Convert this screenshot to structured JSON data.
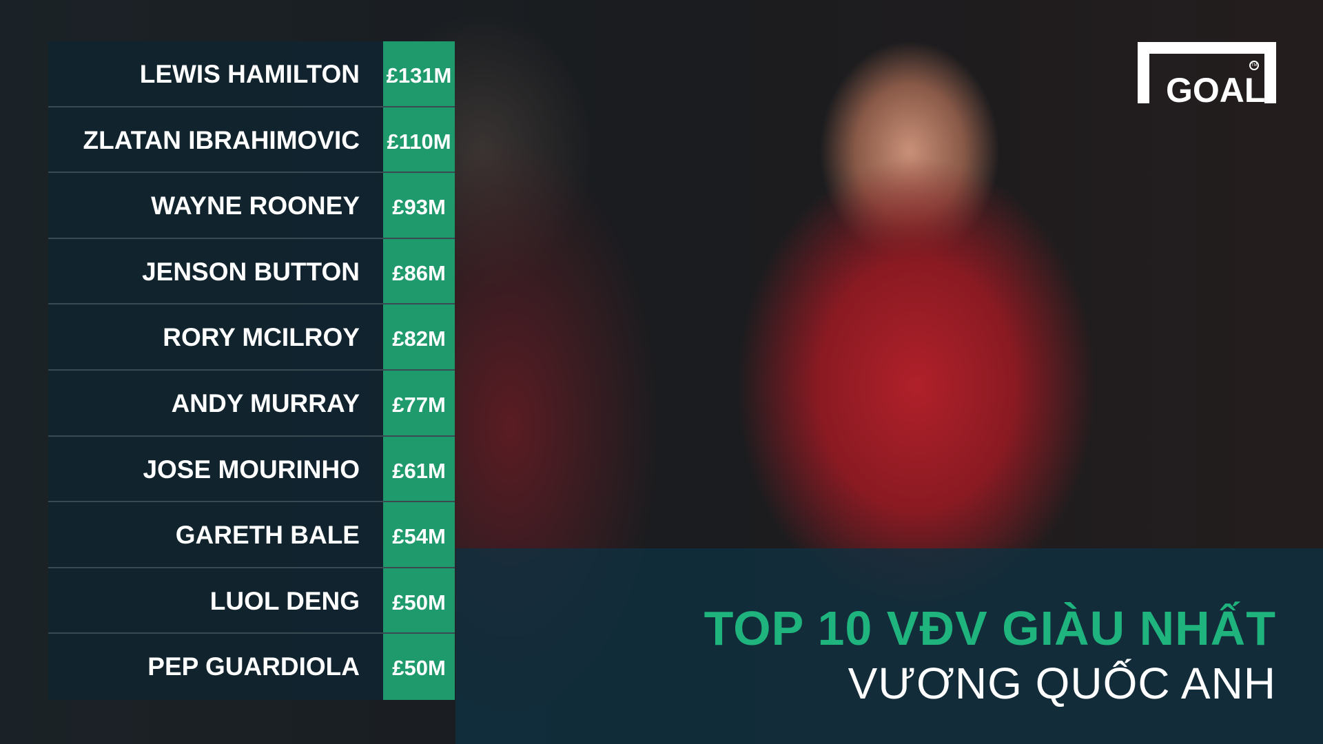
{
  "title": "TOP 10 VĐV GIÀU NHẤT",
  "subtitle": "VƯƠNG QUỐC ANH",
  "logo": {
    "text": "GOAL",
    "tm": "TM"
  },
  "colors": {
    "accent": "#1f9a6c",
    "title": "#1fb37e",
    "panel": "#10243a"
  },
  "rows": [
    {
      "name": "LEWIS HAMILTON",
      "value": "£131M"
    },
    {
      "name": "ZLATAN IBRAHIMOVIC",
      "value": "£110M"
    },
    {
      "name": "WAYNE ROONEY",
      "value": "£93M"
    },
    {
      "name": "JENSON BUTTON",
      "value": "£86M"
    },
    {
      "name": "RORY MCILROY",
      "value": "£82M"
    },
    {
      "name": "ANDY MURRAY",
      "value": "£77M"
    },
    {
      "name": "JOSE MOURINHO",
      "value": "£61M"
    },
    {
      "name": "GARETH BALE",
      "value": "£54M"
    },
    {
      "name": "LUOL DENG",
      "value": "£50M"
    },
    {
      "name": "PEP GUARDIOLA",
      "value": "£50M"
    }
  ]
}
